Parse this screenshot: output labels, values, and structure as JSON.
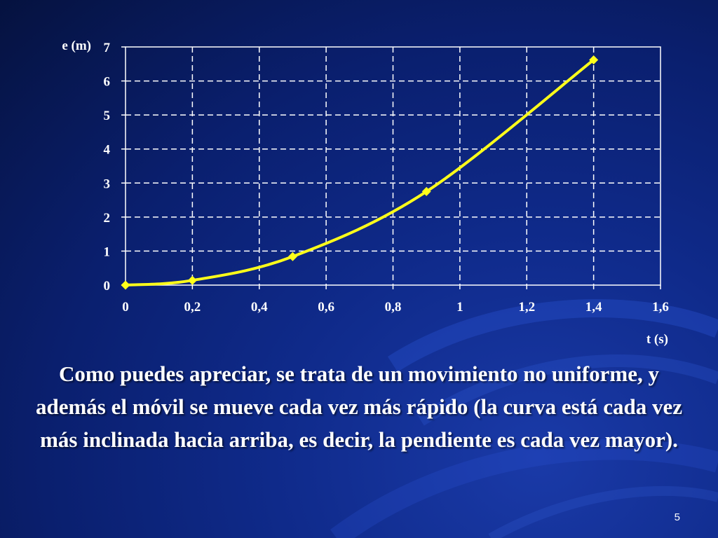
{
  "slide": {
    "caption": "Como puedes apreciar, se trata de un movimiento no uniforme, y además el móvil se mueve cada vez más rápido (la curva está cada vez más inclinada hacia arriba, es decir, la pendiente es cada vez mayor).",
    "number": "5"
  },
  "colors": {
    "background": "#0f2a8a",
    "line": "#ffff1a",
    "grid": "#ffffff",
    "text": "#ffffff"
  },
  "chart_data": {
    "type": "line",
    "title": "",
    "xlabel": "t (s)",
    "ylabel": "e (m)",
    "xlim": [
      0,
      1.6
    ],
    "ylim": [
      0,
      7
    ],
    "xticks": [
      "0",
      "0,2",
      "0,4",
      "0,6",
      "0,8",
      "1",
      "1,2",
      "1,4",
      "1,6"
    ],
    "yticks": [
      "0",
      "1",
      "2",
      "3",
      "4",
      "5",
      "6",
      "7"
    ],
    "grid": true,
    "grid_style": "dashed",
    "legend": "none",
    "marker": "diamond",
    "series": [
      {
        "x": [
          0,
          0.2,
          0.5,
          0.9,
          1.4
        ],
        "y": [
          0,
          0.14,
          0.84,
          2.75,
          6.62
        ]
      }
    ]
  }
}
